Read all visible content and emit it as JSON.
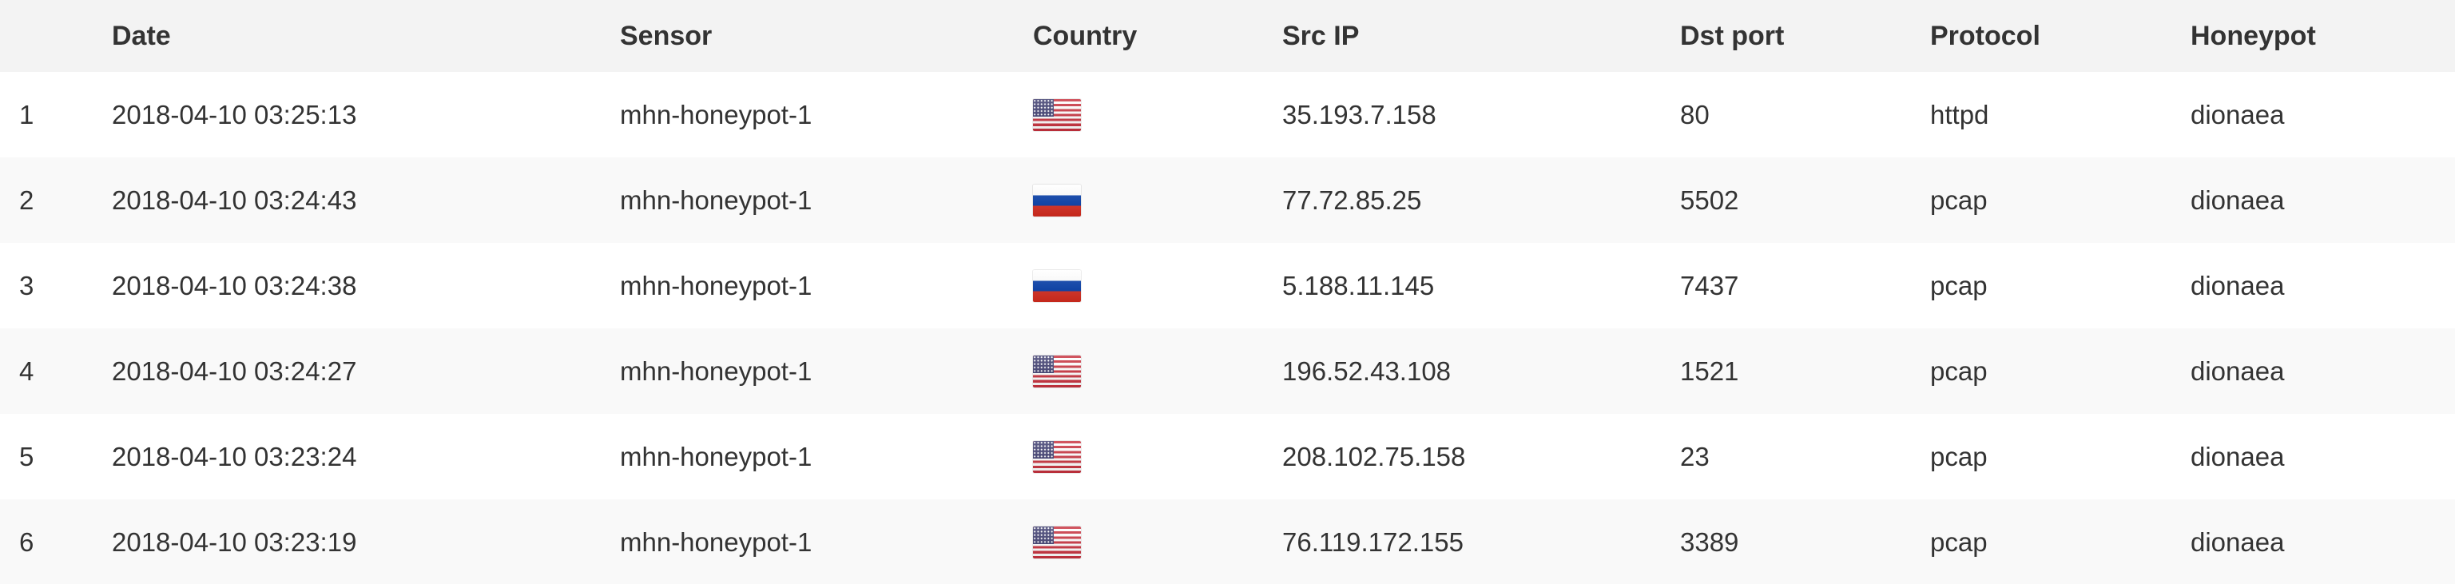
{
  "table": {
    "headers": {
      "index": "",
      "date": "Date",
      "sensor": "Sensor",
      "country": "Country",
      "src_ip": "Src IP",
      "dst_port": "Dst port",
      "protocol": "Protocol",
      "honeypot": "Honeypot"
    },
    "rows": [
      {
        "index": "1",
        "date": "2018-04-10 03:25:13",
        "sensor": "mhn-honeypot-1",
        "country_flag": "us-flag-icon",
        "src_ip": "35.193.7.158",
        "dst_port": "80",
        "protocol": "httpd",
        "honeypot": "dionaea"
      },
      {
        "index": "2",
        "date": "2018-04-10 03:24:43",
        "sensor": "mhn-honeypot-1",
        "country_flag": "ru-flag-icon",
        "src_ip": "77.72.85.25",
        "dst_port": "5502",
        "protocol": "pcap",
        "honeypot": "dionaea"
      },
      {
        "index": "3",
        "date": "2018-04-10 03:24:38",
        "sensor": "mhn-honeypot-1",
        "country_flag": "ru-flag-icon",
        "src_ip": "5.188.11.145",
        "dst_port": "7437",
        "protocol": "pcap",
        "honeypot": "dionaea"
      },
      {
        "index": "4",
        "date": "2018-04-10 03:24:27",
        "sensor": "mhn-honeypot-1",
        "country_flag": "us-flag-icon",
        "src_ip": "196.52.43.108",
        "dst_port": "1521",
        "protocol": "pcap",
        "honeypot": "dionaea"
      },
      {
        "index": "5",
        "date": "2018-04-10 03:23:24",
        "sensor": "mhn-honeypot-1",
        "country_flag": "us-flag-icon",
        "src_ip": "208.102.75.158",
        "dst_port": "23",
        "protocol": "pcap",
        "honeypot": "dionaea"
      },
      {
        "index": "6",
        "date": "2018-04-10 03:23:19",
        "sensor": "mhn-honeypot-1",
        "country_flag": "us-flag-icon",
        "src_ip": "76.119.172.155",
        "dst_port": "3389",
        "protocol": "pcap",
        "honeypot": "dionaea"
      }
    ]
  },
  "colors": {
    "header_bg": "#f3f3f3",
    "row_alt_bg": "#f9f9f9",
    "text": "#333333"
  }
}
